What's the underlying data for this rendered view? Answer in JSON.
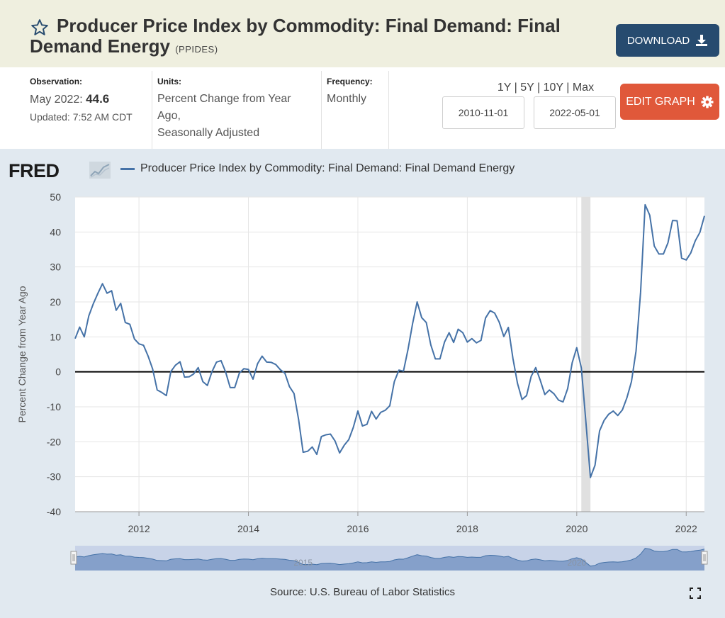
{
  "header": {
    "title": "Producer Price Index by Commodity: Final Demand: Final Demand Energy",
    "series_id": "(PPIDES)",
    "download_label": "DOWNLOAD",
    "star_icon": "star-outline-icon",
    "download_icon": "download-icon"
  },
  "meta": {
    "observation_label": "Observation:",
    "observation_date": "May 2022:",
    "observation_value": "44.6",
    "updated": "Updated: 7:52 AM CDT",
    "units_label": "Units:",
    "units_line1": "Percent Change from Year",
    "units_line2": "Ago,",
    "units_line3": "Seasonally Adjusted",
    "frequency_label": "Frequency:",
    "frequency": "Monthly"
  },
  "controls": {
    "range_1y": "1Y",
    "range_5y": "5Y",
    "range_10y": "10Y",
    "range_max": "Max",
    "sep": "|",
    "start_date": "2010-11-01",
    "end_date": "2022-05-01",
    "edit_label": "EDIT GRAPH",
    "edit_icon": "gear-icon"
  },
  "legend": {
    "logo": "FRED",
    "series_name": "Producer Price Index by Commodity: Final Demand: Final Demand Energy"
  },
  "source": "Source: U.S. Bureau of Labor Statistics",
  "colors": {
    "series": "#4572a7",
    "panel": "#e1e9f0",
    "recession": "#e0e0e0",
    "download": "#274b6f",
    "edit": "#e0583a",
    "header": "#efefdf"
  },
  "chart_data": {
    "type": "line",
    "ylabel": "Percent Change from Year Ago",
    "xlim": [
      "2010-11-01",
      "2022-05-01"
    ],
    "ylim": [
      -40,
      50
    ],
    "yticks": [
      50,
      40,
      30,
      20,
      10,
      0,
      -10,
      -20,
      -30,
      -40
    ],
    "xticks": [
      "2012",
      "2014",
      "2016",
      "2018",
      "2020",
      "2022"
    ],
    "navigator_labels": [
      "2015",
      "2020"
    ],
    "recession": [
      "2020-02-01",
      "2020-04-01"
    ],
    "grid": true,
    "zero_line": true,
    "series": [
      {
        "name": "Producer Price Index by Commodity: Final Demand: Final Demand Energy",
        "points": [
          [
            "2010-11",
            9.5
          ],
          [
            "2010-12",
            12.8
          ],
          [
            "2011-01",
            10
          ],
          [
            "2011-02",
            16
          ],
          [
            "2011-03",
            19.5
          ],
          [
            "2011-04",
            22.5
          ],
          [
            "2011-05",
            25.2
          ],
          [
            "2011-06",
            22.5
          ],
          [
            "2011-07",
            23.2
          ],
          [
            "2011-08",
            17.6
          ],
          [
            "2011-09",
            19.6
          ],
          [
            "2011-10",
            14.1
          ],
          [
            "2011-11",
            13.6
          ],
          [
            "2011-12",
            9.4
          ],
          [
            "2012-01",
            8
          ],
          [
            "2012-02",
            7.6
          ],
          [
            "2012-03",
            4.5
          ],
          [
            "2012-04",
            0.8
          ],
          [
            "2012-05",
            -5.2
          ],
          [
            "2012-06",
            -5.9
          ],
          [
            "2012-07",
            -6.8
          ],
          [
            "2012-08",
            0.1
          ],
          [
            "2012-09",
            1.9
          ],
          [
            "2012-10",
            2.9
          ],
          [
            "2012-11",
            -1.5
          ],
          [
            "2012-12",
            -1.4
          ],
          [
            "2013-01",
            -0.6
          ],
          [
            "2013-02",
            1.2
          ],
          [
            "2013-03",
            -2.8
          ],
          [
            "2013-04",
            -3.9
          ],
          [
            "2013-05",
            0
          ],
          [
            "2013-06",
            2.8
          ],
          [
            "2013-07",
            3.2
          ],
          [
            "2013-08",
            0
          ],
          [
            "2013-09",
            -4.5
          ],
          [
            "2013-10",
            -4.5
          ],
          [
            "2013-11",
            -0.4
          ],
          [
            "2013-12",
            0.9
          ],
          [
            "2014-01",
            0.7
          ],
          [
            "2014-02",
            -2.1
          ],
          [
            "2014-03",
            2.3
          ],
          [
            "2014-04",
            4.5
          ],
          [
            "2014-05",
            2.8
          ],
          [
            "2014-06",
            2.7
          ],
          [
            "2014-07",
            2.1
          ],
          [
            "2014-08",
            0.6
          ],
          [
            "2014-09",
            -0.4
          ],
          [
            "2014-10",
            -4.2
          ],
          [
            "2014-11",
            -6.2
          ],
          [
            "2014-12",
            -13.6
          ],
          [
            "2015-01",
            -23
          ],
          [
            "2015-02",
            -22.7
          ],
          [
            "2015-03",
            -21.5
          ],
          [
            "2015-04",
            -23.6
          ],
          [
            "2015-05",
            -18.5
          ],
          [
            "2015-06",
            -18
          ],
          [
            "2015-07",
            -17.8
          ],
          [
            "2015-08",
            -19.8
          ],
          [
            "2015-09",
            -23.2
          ],
          [
            "2015-10",
            -21
          ],
          [
            "2015-11",
            -19.4
          ],
          [
            "2015-12",
            -15.9
          ],
          [
            "2016-01",
            -11.2
          ],
          [
            "2016-02",
            -15.5
          ],
          [
            "2016-03",
            -15
          ],
          [
            "2016-04",
            -11.3
          ],
          [
            "2016-05",
            -13.5
          ],
          [
            "2016-06",
            -11.6
          ],
          [
            "2016-07",
            -11
          ],
          [
            "2016-08",
            -9.7
          ],
          [
            "2016-09",
            -2.8
          ],
          [
            "2016-10",
            0.5
          ],
          [
            "2016-11",
            0.2
          ],
          [
            "2016-12",
            6.4
          ],
          [
            "2017-01",
            13.8
          ],
          [
            "2017-02",
            20
          ],
          [
            "2017-03",
            15.5
          ],
          [
            "2017-04",
            14.1
          ],
          [
            "2017-05",
            7.7
          ],
          [
            "2017-06",
            3.7
          ],
          [
            "2017-07",
            3.7
          ],
          [
            "2017-08",
            8.5
          ],
          [
            "2017-09",
            11.2
          ],
          [
            "2017-10",
            8.4
          ],
          [
            "2017-11",
            12.2
          ],
          [
            "2017-12",
            11.2
          ],
          [
            "2018-01",
            8.5
          ],
          [
            "2018-02",
            9.5
          ],
          [
            "2018-03",
            8.3
          ],
          [
            "2018-04",
            9
          ],
          [
            "2018-05",
            15.4
          ],
          [
            "2018-06",
            17.5
          ],
          [
            "2018-07",
            16.8
          ],
          [
            "2018-08",
            14.2
          ],
          [
            "2018-09",
            10.1
          ],
          [
            "2018-10",
            12.7
          ],
          [
            "2018-11",
            3.9
          ],
          [
            "2018-12",
            -3.3
          ],
          [
            "2019-01",
            -7.9
          ],
          [
            "2019-02",
            -6.8
          ],
          [
            "2019-03",
            -1.3
          ],
          [
            "2019-04",
            1.2
          ],
          [
            "2019-05",
            -2.4
          ],
          [
            "2019-06",
            -6.5
          ],
          [
            "2019-07",
            -5.2
          ],
          [
            "2019-08",
            -6.3
          ],
          [
            "2019-09",
            -8.1
          ],
          [
            "2019-10",
            -8.6
          ],
          [
            "2019-11",
            -4.8
          ],
          [
            "2019-12",
            2.6
          ],
          [
            "2020-01",
            6.9
          ],
          [
            "2020-02",
            1.1
          ],
          [
            "2020-03",
            -14.3
          ],
          [
            "2020-04",
            -30.2
          ],
          [
            "2020-05",
            -26.7
          ],
          [
            "2020-06",
            -16.9
          ],
          [
            "2020-07",
            -13.9
          ],
          [
            "2020-08",
            -12.1
          ],
          [
            "2020-09",
            -11.2
          ],
          [
            "2020-10",
            -12.5
          ],
          [
            "2020-11",
            -10.9
          ],
          [
            "2020-12",
            -7.4
          ],
          [
            "2021-01",
            -2.8
          ],
          [
            "2021-02",
            6
          ],
          [
            "2021-03",
            22.8
          ],
          [
            "2021-04",
            47.8
          ],
          [
            "2021-05",
            44.8
          ],
          [
            "2021-06",
            36
          ],
          [
            "2021-07",
            33.7
          ],
          [
            "2021-08",
            33.7
          ],
          [
            "2021-09",
            36.9
          ],
          [
            "2021-10",
            43.3
          ],
          [
            "2021-11",
            43.2
          ],
          [
            "2021-12",
            32.5
          ],
          [
            "2022-01",
            32
          ],
          [
            "2022-02",
            34
          ],
          [
            "2022-03",
            37.5
          ],
          [
            "2022-04",
            39.9
          ],
          [
            "2022-05",
            44.6
          ]
        ]
      }
    ]
  }
}
